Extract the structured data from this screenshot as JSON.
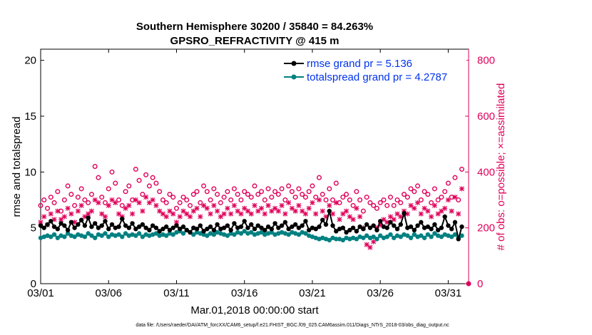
{
  "chart_data": {
    "type": "line",
    "title_line1": "Southern Hemisphere 30200 / 35840 = 84.263%",
    "title_line2": "GPSRO_REFRACTIVITY @ 415 m",
    "xlabel": "Mar.01,2018 00:00:00 start",
    "ylabel": "rmse and totalspread",
    "ylabel_right": "# of obs: o=possible; ×=assimilated",
    "footnote": "data file: /Users/raeder/DAI/ATM_forcXX/CAM6_setup/f.e21.FHIST_BGC.f09_025.CAM6assim.011/Diags_NTrS_2018-03/obs_diag_output.nc",
    "xlim": [
      1,
      32.5
    ],
    "ylim": [
      0,
      21
    ],
    "ylim_right": [
      0,
      840
    ],
    "xticks": [
      1,
      6,
      11,
      16,
      21,
      26,
      31
    ],
    "xtick_labels": [
      "03/01",
      "03/06",
      "03/11",
      "03/16",
      "03/21",
      "03/26",
      "03/31"
    ],
    "yticks": [
      0,
      5,
      10,
      15,
      20
    ],
    "ytick_labels": [
      "0",
      "5",
      "10",
      "15",
      "20"
    ],
    "yticks_right": [
      0,
      200,
      400,
      600,
      800
    ],
    "ytick_labels_right": [
      "0",
      "200",
      "400",
      "600",
      "800"
    ],
    "colors": {
      "rmse": "#000000",
      "spread": "#008080",
      "obs": "#e0005a",
      "axis": "#000000",
      "legend_text": "#0033ee"
    },
    "legend": [
      {
        "label": "rmse grand pr = 5.136",
        "series": "rmse"
      },
      {
        "label": "totalspread grand pr = 4.2787",
        "series": "spread"
      }
    ],
    "x": [
      1.0,
      1.25,
      1.5,
      1.75,
      2.0,
      2.25,
      2.5,
      2.75,
      3.0,
      3.25,
      3.5,
      3.75,
      4.0,
      4.25,
      4.5,
      4.75,
      5.0,
      5.25,
      5.5,
      5.75,
      6.0,
      6.25,
      6.5,
      6.75,
      7.0,
      7.25,
      7.5,
      7.75,
      8.0,
      8.25,
      8.5,
      8.75,
      9.0,
      9.25,
      9.5,
      9.75,
      10.0,
      10.25,
      10.5,
      10.75,
      11.0,
      11.25,
      11.5,
      11.75,
      12.0,
      12.25,
      12.5,
      12.75,
      13.0,
      13.25,
      13.5,
      13.75,
      14.0,
      14.25,
      14.5,
      14.75,
      15.0,
      15.25,
      15.5,
      15.75,
      16.0,
      16.25,
      16.5,
      16.75,
      17.0,
      17.25,
      17.5,
      17.75,
      18.0,
      18.25,
      18.5,
      18.75,
      19.0,
      19.25,
      19.5,
      19.75,
      20.0,
      20.25,
      20.5,
      20.75,
      21.0,
      21.25,
      21.5,
      21.75,
      22.0,
      22.25,
      22.5,
      22.75,
      23.0,
      23.25,
      23.5,
      23.75,
      24.0,
      24.25,
      24.5,
      24.75,
      25.0,
      25.25,
      25.5,
      25.75,
      26.0,
      26.25,
      26.5,
      26.75,
      27.0,
      27.25,
      27.5,
      27.75,
      28.0,
      28.25,
      28.5,
      28.75,
      29.0,
      29.25,
      29.5,
      29.75,
      30.0,
      30.25,
      30.5,
      30.75,
      31.0,
      31.25,
      31.5,
      31.75,
      32.0
    ],
    "series": [
      {
        "name": "rmse",
        "axis": "left",
        "values": [
          5.2,
          5.0,
          5.3,
          5.6,
          5.1,
          4.9,
          5.4,
          5.2,
          4.8,
          5.5,
          5.0,
          5.3,
          5.7,
          5.2,
          5.9,
          5.1,
          5.4,
          5.0,
          5.2,
          5.6,
          4.9,
          5.3,
          5.0,
          5.1,
          5.8,
          5.2,
          5.0,
          5.4,
          4.9,
          5.1,
          5.3,
          5.0,
          4.8,
          5.2,
          5.0,
          4.7,
          4.9,
          5.1,
          4.8,
          5.0,
          5.2,
          4.9,
          5.1,
          4.8,
          4.6,
          5.0,
          4.9,
          5.2,
          4.7,
          4.9,
          5.1,
          4.8,
          5.3,
          4.9,
          5.0,
          5.2,
          4.8,
          5.4,
          5.0,
          5.1,
          5.6,
          5.0,
          5.3,
          4.9,
          5.2,
          5.0,
          4.8,
          5.1,
          4.9,
          5.4,
          5.0,
          5.2,
          5.5,
          4.9,
          5.1,
          5.3,
          5.0,
          5.2,
          5.6,
          4.8,
          5.0,
          4.9,
          5.1,
          5.7,
          5.3,
          6.5,
          5.2,
          4.7,
          4.9,
          5.0,
          4.6,
          4.8,
          5.0,
          4.7,
          5.1,
          4.9,
          5.3,
          5.0,
          5.2,
          4.8,
          5.6,
          5.1,
          5.0,
          5.5,
          5.2,
          4.9,
          5.3,
          6.3,
          5.0,
          5.1,
          4.8,
          5.2,
          5.5,
          5.0,
          5.1,
          4.9,
          5.3,
          4.8,
          5.0,
          6.0,
          5.2,
          4.9,
          5.5,
          4.0,
          5.1
        ]
      },
      {
        "name": "spread",
        "axis": "left",
        "values": [
          4.1,
          4.2,
          4.3,
          4.2,
          4.4,
          4.1,
          4.3,
          4.2,
          4.5,
          4.3,
          4.2,
          4.4,
          4.3,
          4.2,
          4.5,
          4.3,
          4.1,
          4.4,
          4.3,
          4.5,
          4.2,
          4.4,
          4.3,
          4.4,
          4.2,
          4.5,
          4.3,
          4.4,
          4.3,
          4.5,
          4.2,
          4.4,
          4.3,
          4.4,
          4.5,
          4.3,
          4.4,
          4.3,
          4.5,
          4.4,
          4.6,
          4.7,
          4.5,
          4.8,
          4.6,
          4.4,
          4.6,
          4.5,
          4.4,
          4.3,
          4.5,
          4.4,
          4.6,
          4.5,
          4.4,
          4.3,
          4.5,
          4.4,
          4.6,
          4.5,
          4.7,
          4.5,
          4.6,
          4.4,
          4.5,
          4.6,
          4.4,
          4.5,
          4.6,
          4.4,
          4.5,
          4.6,
          4.5,
          4.4,
          4.6,
          4.5,
          4.4,
          4.6,
          4.5,
          4.3,
          4.2,
          4.1,
          4.0,
          4.1,
          4.0,
          3.9,
          4.1,
          4.0,
          4.0,
          3.9,
          4.1,
          4.0,
          4.1,
          4.0,
          4.2,
          4.1,
          4.3,
          4.1,
          4.2,
          4.0,
          4.3,
          4.1,
          4.2,
          4.4,
          4.1,
          4.3,
          4.2,
          4.4,
          4.3,
          4.1,
          4.4,
          4.2,
          4.3,
          4.1,
          4.4,
          4.2,
          4.5,
          4.3,
          4.2,
          4.4,
          4.3,
          4.2,
          4.4,
          4.1,
          4.3
        ]
      },
      {
        "name": "obs_possible",
        "axis": "right",
        "values": [
          280,
          300,
          270,
          310,
          290,
          330,
          260,
          300,
          350,
          320,
          280,
          310,
          340,
          300,
          290,
          320,
          420,
          380,
          310,
          290,
          340,
          400,
          360,
          300,
          280,
          330,
          350,
          300,
          410,
          370,
          320,
          390,
          350,
          380,
          360,
          330,
          300,
          290,
          320,
          310,
          270,
          290,
          310,
          300,
          280,
          320,
          330,
          290,
          350,
          330,
          300,
          340,
          320,
          290,
          310,
          330,
          300,
          340,
          320,
          300,
          330,
          320,
          310,
          350,
          320,
          330,
          300,
          340,
          310,
          330,
          320,
          340,
          300,
          350,
          330,
          310,
          340,
          320,
          310,
          330,
          350,
          310,
          380,
          320,
          300,
          340,
          300,
          360,
          290,
          310,
          320,
          300,
          280,
          330,
          300,
          260,
          310,
          290,
          280,
          270,
          290,
          300,
          280,
          310,
          280,
          300,
          290,
          320,
          310,
          340,
          330,
          350,
          300,
          330,
          320,
          290,
          340,
          300,
          310,
          330,
          360,
          310,
          380,
          300,
          410
        ]
      },
      {
        "name": "obs_assimilated",
        "axis": "right",
        "values": [
          220,
          240,
          210,
          250,
          230,
          260,
          230,
          240,
          270,
          250,
          220,
          260,
          280,
          240,
          250,
          260,
          300,
          290,
          250,
          240,
          280,
          300,
          290,
          250,
          240,
          270,
          280,
          250,
          300,
          290,
          260,
          310,
          290,
          300,
          280,
          260,
          250,
          240,
          260,
          250,
          220,
          240,
          260,
          250,
          240,
          260,
          270,
          240,
          280,
          270,
          250,
          280,
          260,
          240,
          250,
          270,
          250,
          280,
          260,
          250,
          270,
          260,
          250,
          280,
          260,
          270,
          250,
          280,
          260,
          270,
          260,
          280,
          250,
          290,
          270,
          260,
          280,
          260,
          250,
          270,
          290,
          250,
          300,
          260,
          240,
          280,
          250,
          290,
          230,
          250,
          260,
          240,
          230,
          270,
          240,
          200,
          140,
          130,
          150,
          200,
          210,
          230,
          220,
          240,
          230,
          250,
          240,
          260,
          250,
          280,
          270,
          290,
          250,
          270,
          260,
          240,
          280,
          250,
          260,
          270,
          300,
          260,
          310,
          250,
          340
        ]
      }
    ]
  }
}
